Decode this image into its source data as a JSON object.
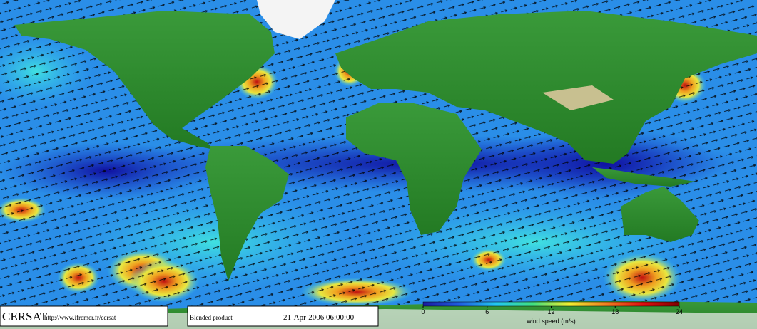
{
  "header": {
    "agency": "CERSAT",
    "url": "http://www.ifremer.fr/cersat"
  },
  "product": {
    "name": "Blended product",
    "date": "21-Apr-2006 06:00:00"
  },
  "colorbar": {
    "label": "wind speed (m/s)",
    "lim": [
      0,
      24
    ],
    "ticks": [
      0,
      6,
      12,
      18,
      24
    ],
    "colors": [
      "#1a1aa0",
      "#1f5fe0",
      "#22c8f0",
      "#40e080",
      "#f0f030",
      "#f08020",
      "#e01010",
      "#800000"
    ]
  }
}
